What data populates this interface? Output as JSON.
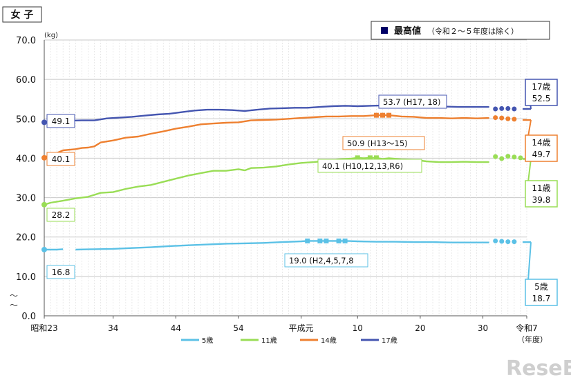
{
  "panel_title": "女 子",
  "note_label": "最高値",
  "note_detail": "（令和２～５年度は除く）",
  "watermark": "ReseEd",
  "colors": {
    "age5": "#5bc1e6",
    "age11": "#99dd55",
    "age14": "#ee8030",
    "age17": "#4455b0",
    "highlight": "#000066"
  },
  "chart_data": {
    "type": "line",
    "title": "女子",
    "xlabel": "（年度）",
    "ylabel": "(kg)",
    "ylim": [
      0,
      70
    ],
    "yticks": [
      "0.0",
      "10.0",
      "20.0",
      "30.0",
      "40.0",
      "50.0",
      "60.0",
      "70.0"
    ],
    "x_ticks": [
      {
        "year": 1948,
        "label": "昭和23"
      },
      {
        "year": 1959,
        "label": "34"
      },
      {
        "year": 1969,
        "label": "44"
      },
      {
        "year": 1979,
        "label": "54"
      },
      {
        "year": 1989,
        "label": "平成元"
      },
      {
        "year": 1998,
        "label": "10"
      },
      {
        "year": 2008,
        "label": "20"
      },
      {
        "year": 2018,
        "label": "30"
      },
      {
        "year": 2025,
        "label": "令和7"
      }
    ],
    "x_range": [
      1948,
      2025
    ],
    "series": [
      {
        "name": "5歳",
        "key": "age5",
        "start_value": "16.8",
        "end_label": "5歳",
        "end_value": "18.7",
        "max_label": "19.0 (H2,4,5,7,8",
        "segments": [
          [
            [
              1948,
              16.8
            ],
            [
              1949,
              16.8
            ],
            [
              1950,
              16.8
            ],
            [
              1951,
              16.9
            ]
          ],
          [
            [
              1953,
              16.8
            ],
            [
              1956,
              16.9
            ],
            [
              1959,
              17.0
            ],
            [
              1962,
              17.2
            ],
            [
              1965,
              17.4
            ],
            [
              1968,
              17.7
            ],
            [
              1971,
              17.9
            ],
            [
              1974,
              18.1
            ],
            [
              1977,
              18.3
            ],
            [
              1980,
              18.4
            ],
            [
              1983,
              18.5
            ],
            [
              1986,
              18.7
            ],
            [
              1989,
              18.9
            ],
            [
              1990,
              19.0
            ],
            [
              1992,
              19.0
            ],
            [
              1993,
              19.0
            ],
            [
              1995,
              19.0
            ],
            [
              1996,
              19.0
            ],
            [
              1998,
              18.9
            ],
            [
              2001,
              18.8
            ],
            [
              2004,
              18.8
            ],
            [
              2007,
              18.7
            ],
            [
              2010,
              18.7
            ],
            [
              2013,
              18.6
            ],
            [
              2016,
              18.6
            ],
            [
              2019,
              18.6
            ]
          ]
        ],
        "max_points": [
          [
            1990,
            19.0
          ],
          [
            1992,
            19.0
          ],
          [
            1993,
            19.0
          ],
          [
            1995,
            19.0
          ],
          [
            1996,
            19.0
          ]
        ],
        "recent": [
          [
            2020,
            19.0
          ],
          [
            2021,
            18.9
          ],
          [
            2022,
            18.8
          ],
          [
            2023,
            18.8
          ]
        ],
        "final": [
          2025,
          18.7
        ]
      },
      {
        "name": "11歳",
        "key": "age11",
        "start_value": "28.2",
        "end_label": "11歳",
        "end_value": "39.8",
        "max_label": "40.1 (H10,12,13,R6)",
        "segments": [
          [
            [
              1948,
              28.2
            ],
            [
              1949,
              28.7
            ],
            [
              1951,
              29.2
            ],
            [
              1953,
              29.8
            ],
            [
              1955,
              30.2
            ],
            [
              1957,
              31.2
            ],
            [
              1959,
              31.4
            ],
            [
              1961,
              32.2
            ],
            [
              1963,
              32.8
            ],
            [
              1965,
              33.2
            ],
            [
              1967,
              34.0
            ],
            [
              1969,
              34.8
            ],
            [
              1971,
              35.6
            ],
            [
              1973,
              36.2
            ],
            [
              1975,
              36.8
            ],
            [
              1977,
              36.8
            ],
            [
              1979,
              37.2
            ],
            [
              1980,
              36.9
            ],
            [
              1981,
              37.5
            ],
            [
              1983,
              37.6
            ],
            [
              1985,
              37.9
            ],
            [
              1987,
              38.4
            ],
            [
              1989,
              38.8
            ],
            [
              1991,
              39.0
            ],
            [
              1993,
              39.3
            ],
            [
              1995,
              39.7
            ],
            [
              1997,
              39.9
            ],
            [
              1998,
              40.1
            ],
            [
              1999,
              40.0
            ],
            [
              2000,
              40.1
            ],
            [
              2001,
              40.1
            ],
            [
              2002,
              39.8
            ],
            [
              2003,
              40.0
            ],
            [
              2005,
              39.7
            ],
            [
              2007,
              39.6
            ],
            [
              2009,
              39.2
            ],
            [
              2011,
              39.0
            ],
            [
              2013,
              39.0
            ],
            [
              2015,
              39.1
            ],
            [
              2017,
              39.0
            ],
            [
              2019,
              39.0
            ]
          ]
        ],
        "max_points": [
          [
            1998,
            40.1
          ],
          [
            2000,
            40.1
          ],
          [
            2001,
            40.1
          ]
        ],
        "recent": [
          [
            2020,
            40.4
          ],
          [
            2021,
            39.9
          ],
          [
            2022,
            40.5
          ],
          [
            2023,
            40.3
          ],
          [
            2024,
            40.1
          ]
        ],
        "final": [
          2025,
          39.8
        ]
      },
      {
        "name": "14歳",
        "key": "age14",
        "start_value": "40.1",
        "end_label": "14歳",
        "end_value": "49.7",
        "max_label": "50.9 (H13～15)",
        "segments": [
          [
            [
              1948,
              40.1
            ],
            [
              1949,
              41.0
            ],
            [
              1950,
              41.3
            ],
            [
              1951,
              42.0
            ],
            [
              1953,
              42.3
            ],
            [
              1954,
              42.6
            ],
            [
              1955,
              42.7
            ],
            [
              1956,
              43.0
            ],
            [
              1957,
              44.0
            ],
            [
              1959,
              44.5
            ],
            [
              1961,
              45.2
            ],
            [
              1963,
              45.5
            ],
            [
              1965,
              46.2
            ],
            [
              1967,
              46.8
            ],
            [
              1969,
              47.5
            ],
            [
              1971,
              48.0
            ],
            [
              1973,
              48.6
            ],
            [
              1975,
              48.8
            ],
            [
              1977,
              49.0
            ],
            [
              1979,
              49.1
            ],
            [
              1981,
              49.6
            ],
            [
              1983,
              49.7
            ],
            [
              1985,
              49.8
            ],
            [
              1987,
              50.0
            ],
            [
              1989,
              50.2
            ],
            [
              1991,
              50.4
            ],
            [
              1993,
              50.6
            ],
            [
              1995,
              50.6
            ],
            [
              1997,
              50.7
            ],
            [
              1999,
              50.7
            ],
            [
              2001,
              50.9
            ],
            [
              2002,
              50.9
            ],
            [
              2003,
              50.9
            ],
            [
              2005,
              50.6
            ],
            [
              2007,
              50.5
            ],
            [
              2009,
              50.2
            ],
            [
              2011,
              50.2
            ],
            [
              2013,
              50.1
            ],
            [
              2015,
              50.2
            ],
            [
              2017,
              50.1
            ],
            [
              2019,
              50.2
            ]
          ]
        ],
        "max_points": [
          [
            2001,
            50.9
          ],
          [
            2002,
            50.9
          ],
          [
            2003,
            50.9
          ]
        ],
        "recent": [
          [
            2020,
            50.3
          ],
          [
            2021,
            50.2
          ],
          [
            2022,
            50.0
          ],
          [
            2023,
            49.9
          ]
        ],
        "final": [
          2025,
          49.7
        ]
      },
      {
        "name": "17歳",
        "key": "17歳",
        "start_value": "49.1",
        "end_label": "17歳",
        "end_value": "52.5",
        "max_label": "53.7 (H17, 18)",
        "segments": [
          [
            [
              1948,
              49.1
            ],
            [
              1950,
              49.0
            ],
            [
              1952,
              49.5
            ],
            [
              1954,
              49.6
            ],
            [
              1956,
              49.6
            ],
            [
              1958,
              50.1
            ],
            [
              1960,
              50.3
            ],
            [
              1962,
              50.5
            ],
            [
              1964,
              50.8
            ],
            [
              1966,
              51.1
            ],
            [
              1968,
              51.3
            ],
            [
              1970,
              51.7
            ],
            [
              1972,
              52.1
            ],
            [
              1974,
              52.3
            ],
            [
              1976,
              52.3
            ],
            [
              1978,
              52.2
            ],
            [
              1980,
              52.0
            ],
            [
              1982,
              52.3
            ],
            [
              1984,
              52.6
            ],
            [
              1986,
              52.7
            ],
            [
              1988,
              52.8
            ],
            [
              1990,
              52.8
            ],
            [
              1992,
              53.0
            ],
            [
              1994,
              53.2
            ],
            [
              1996,
              53.3
            ],
            [
              1998,
              53.2
            ],
            [
              2000,
              53.3
            ],
            [
              2002,
              53.4
            ],
            [
              2005,
              53.7
            ],
            [
              2006,
              53.7
            ],
            [
              2008,
              53.3
            ],
            [
              2010,
              53.2
            ],
            [
              2012,
              53.1
            ],
            [
              2014,
              53.0
            ],
            [
              2016,
              53.0
            ],
            [
              2018,
              53.0
            ],
            [
              2019,
              53.0
            ]
          ]
        ],
        "max_points": [
          [
            2005,
            53.7
          ],
          [
            2006,
            53.7
          ]
        ],
        "recent": [
          [
            2020,
            52.5
          ],
          [
            2021,
            52.6
          ],
          [
            2022,
            52.6
          ],
          [
            2023,
            52.5
          ]
        ],
        "final": [
          2025,
          52.5
        ]
      }
    ]
  },
  "legend": [
    {
      "label": "5歳",
      "key": "age5"
    },
    {
      "label": "11歳",
      "key": "age11"
    },
    {
      "label": "14歳",
      "key": "age14"
    },
    {
      "label": "17歳",
      "key": "age17"
    }
  ]
}
